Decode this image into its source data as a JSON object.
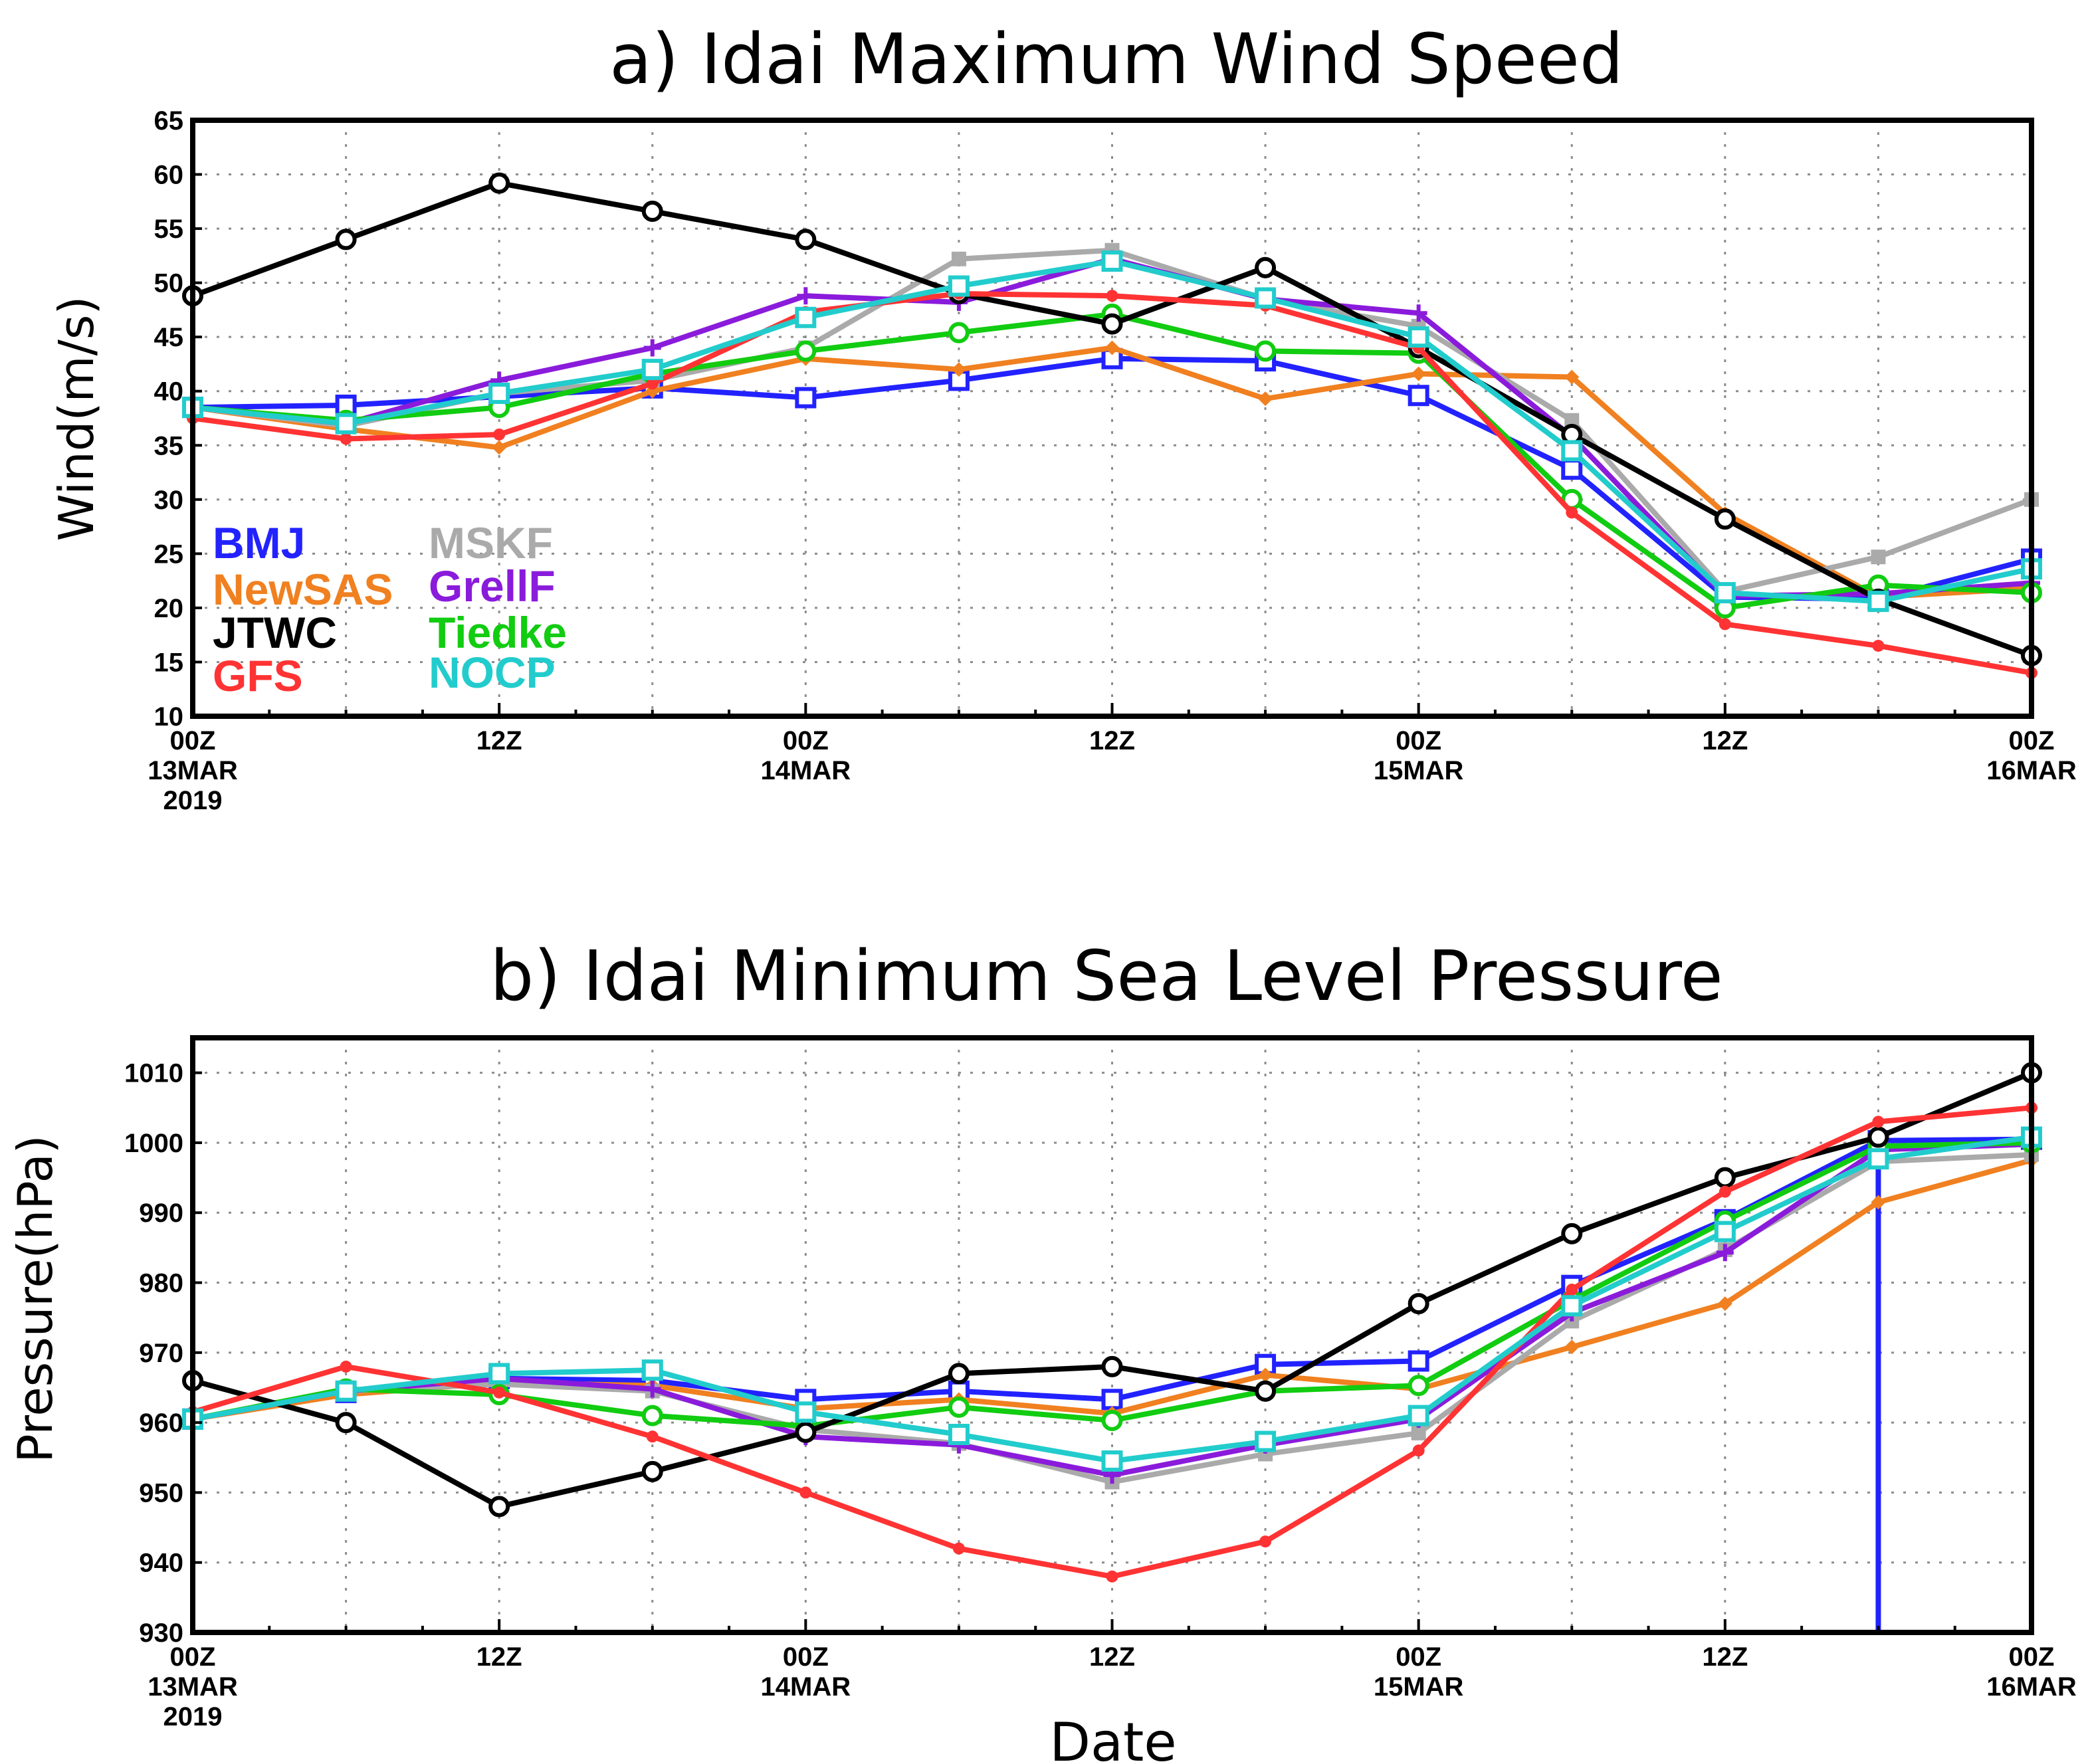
{
  "chart_data": [
    {
      "type": "line",
      "title": "a) Idai Maximum Wind Speed",
      "ylabel": "Wind(m/s)",
      "xlabel": "",
      "ylim": [
        10,
        65
      ],
      "yticks": [
        10,
        15,
        20,
        25,
        30,
        35,
        40,
        45,
        50,
        55,
        60,
        65
      ],
      "grid": true,
      "legend_position": "bottom-left",
      "x_ticks": [
        {
          "hour": 0,
          "lines": [
            "00Z",
            "13MAR",
            "2019"
          ]
        },
        {
          "hour": 12,
          "lines": [
            "12Z"
          ]
        },
        {
          "hour": 24,
          "lines": [
            "00Z",
            "14MAR"
          ]
        },
        {
          "hour": 36,
          "lines": [
            "12Z"
          ]
        },
        {
          "hour": 48,
          "lines": [
            "00Z",
            "15MAR"
          ]
        },
        {
          "hour": 60,
          "lines": [
            "12Z"
          ]
        },
        {
          "hour": 72,
          "lines": [
            "00Z",
            "16MAR"
          ]
        }
      ],
      "series": [
        {
          "name": "BMJ",
          "color": "#2222ff",
          "marker": "square",
          "x": [
            0,
            6,
            12,
            18,
            24,
            30,
            36,
            42,
            48,
            54,
            60,
            66,
            72
          ],
          "values": [
            38.5,
            38.7,
            39.5,
            40.3,
            39.4,
            41,
            43,
            42.8,
            39.6,
            32.8,
            21,
            20.8,
            24.5
          ]
        },
        {
          "name": "MSKF",
          "color": "#aaaaaa",
          "marker": "square-filled",
          "x": [
            0,
            6,
            12,
            18,
            24,
            30,
            36,
            42,
            48,
            54,
            60,
            66,
            72
          ],
          "values": [
            38.5,
            36.8,
            39.8,
            41,
            44,
            52.2,
            53,
            48.5,
            46,
            37.3,
            21.5,
            24.7,
            30
          ]
        },
        {
          "name": "NewSAS",
          "color": "#f08020",
          "marker": "diamond",
          "x": [
            0,
            6,
            12,
            18,
            24,
            30,
            36,
            42,
            48,
            54,
            60,
            66,
            72
          ],
          "values": [
            38.5,
            36.5,
            34.8,
            40,
            43,
            42,
            44,
            39.3,
            41.6,
            41.3,
            28.7,
            21,
            21.8
          ]
        },
        {
          "name": "GrellF",
          "color": "#8a1bdb",
          "marker": "plus",
          "x": [
            0,
            6,
            12,
            18,
            24,
            30,
            36,
            42,
            48,
            54,
            60,
            66,
            72
          ],
          "values": [
            38.5,
            37,
            41,
            44,
            48.8,
            48.2,
            52.2,
            48.5,
            47.2,
            35.8,
            21.1,
            21.3,
            22.3
          ]
        },
        {
          "name": "JTWC",
          "color": "#000000",
          "marker": "circle",
          "x": [
            0,
            6,
            12,
            18,
            24,
            30,
            36,
            42,
            48,
            54,
            60,
            66,
            72
          ],
          "values": [
            48.8,
            54,
            59.2,
            56.6,
            54,
            49,
            46.2,
            51.4,
            44,
            36,
            28.2,
            20.8,
            15.6
          ]
        },
        {
          "name": "Tiedke",
          "color": "#11cc11",
          "marker": "circle",
          "x": [
            0,
            6,
            12,
            18,
            24,
            30,
            36,
            42,
            48,
            54,
            60,
            66,
            72
          ],
          "values": [
            38.5,
            37.3,
            38.5,
            41.6,
            43.7,
            45.4,
            47.1,
            43.7,
            43.5,
            30,
            20,
            22.1,
            21.4
          ]
        },
        {
          "name": "GFS",
          "color": "#ff3333",
          "marker": "dot",
          "x": [
            0,
            6,
            12,
            18,
            24,
            30,
            36,
            42,
            48,
            54,
            60,
            66,
            72
          ],
          "values": [
            37.5,
            35.6,
            36,
            40.7,
            47.3,
            49,
            48.8,
            47.9,
            44,
            28.8,
            18.5,
            16.5,
            14
          ]
        },
        {
          "name": "NOCP",
          "color": "#22cccc",
          "marker": "square",
          "x": [
            0,
            6,
            12,
            18,
            24,
            30,
            36,
            42,
            48,
            54,
            60,
            66,
            72
          ],
          "values": [
            38.5,
            37,
            39.8,
            42,
            46.8,
            49.7,
            52,
            48.6,
            45,
            34.5,
            21.4,
            20.6,
            23.6
          ]
        }
      ]
    },
    {
      "type": "line",
      "title": "b) Idai Minimum Sea Level Pressure",
      "ylabel": "Pressure(hPa)",
      "xlabel": "Date",
      "ylim": [
        930,
        1015
      ],
      "yticks": [
        930,
        940,
        950,
        960,
        970,
        980,
        990,
        1000,
        1010
      ],
      "grid": true,
      "x_ticks": [
        {
          "hour": 0,
          "lines": [
            "00Z",
            "13MAR",
            "2019"
          ]
        },
        {
          "hour": 12,
          "lines": [
            "12Z"
          ]
        },
        {
          "hour": 24,
          "lines": [
            "00Z",
            "14MAR"
          ]
        },
        {
          "hour": 36,
          "lines": [
            "12Z"
          ]
        },
        {
          "hour": 48,
          "lines": [
            "00Z",
            "15MAR"
          ]
        },
        {
          "hour": 60,
          "lines": [
            "12Z"
          ]
        },
        {
          "hour": 72,
          "lines": [
            "00Z",
            "16MAR"
          ]
        }
      ],
      "series": [
        {
          "name": "BMJ",
          "color": "#2222ff",
          "marker": "square",
          "x": [
            0,
            6,
            12,
            18,
            24,
            30,
            36,
            42,
            48,
            54,
            60,
            66,
            72
          ],
          "values": [
            960.5,
            964.3,
            966.3,
            966,
            963.3,
            964.5,
            963.3,
            968.3,
            968.8,
            979.6,
            989,
            1000.3,
            1000.5
          ]
        },
        {
          "name": "MSKF",
          "color": "#aaaaaa",
          "marker": "square-filled",
          "x": [
            0,
            6,
            12,
            18,
            24,
            30,
            36,
            42,
            48,
            54,
            60,
            66,
            72
          ],
          "values": [
            960.5,
            964.5,
            965.5,
            964.5,
            959,
            957,
            951.5,
            955.5,
            958.5,
            974.5,
            984.7,
            997.3,
            998.3
          ]
        },
        {
          "name": "NewSAS",
          "color": "#f08020",
          "marker": "diamond",
          "x": [
            0,
            6,
            12,
            18,
            24,
            30,
            36,
            42,
            48,
            54,
            60,
            66,
            72
          ],
          "values": [
            960.5,
            964,
            965.7,
            965.3,
            962,
            963.3,
            961.3,
            966.8,
            964.8,
            970.8,
            977,
            991.5,
            997.5
          ]
        },
        {
          "name": "GrellF",
          "color": "#8a1bdb",
          "marker": "plus",
          "x": [
            0,
            6,
            12,
            18,
            24,
            30,
            36,
            42,
            48,
            54,
            60,
            66,
            72
          ],
          "values": [
            960.5,
            964.5,
            966.3,
            964.8,
            958,
            956.8,
            952.5,
            956.8,
            960.5,
            975.7,
            984.3,
            999,
            999.8
          ]
        },
        {
          "name": "JTWC",
          "color": "#000000",
          "marker": "circle",
          "x": [
            0,
            6,
            12,
            18,
            24,
            30,
            36,
            42,
            48,
            54,
            60,
            66,
            72
          ],
          "values": [
            966,
            960,
            948,
            953,
            958.6,
            967,
            968,
            964.5,
            977,
            987,
            995,
            1000.8,
            1010
          ]
        },
        {
          "name": "Tiedke",
          "color": "#11cc11",
          "marker": "circle",
          "x": [
            0,
            6,
            12,
            18,
            24,
            30,
            36,
            42,
            48,
            54,
            60,
            66,
            72
          ],
          "values": [
            960.5,
            964.8,
            964,
            961,
            959.5,
            962.2,
            960.3,
            964.5,
            965.3,
            977.5,
            988.8,
            999.5,
            1000
          ]
        },
        {
          "name": "GFS",
          "color": "#ff3333",
          "marker": "dot",
          "x": [
            0,
            6,
            12,
            18,
            24,
            30,
            36,
            42,
            48,
            54,
            60,
            66,
            72
          ],
          "values": [
            961.5,
            968,
            964.3,
            958,
            950,
            942,
            938,
            943,
            956,
            979,
            993,
            1003,
            1005
          ]
        },
        {
          "name": "NOCP",
          "color": "#22cccc",
          "marker": "square",
          "x": [
            0,
            6,
            12,
            18,
            24,
            30,
            36,
            42,
            48,
            54,
            60,
            66,
            72
          ],
          "values": [
            960.5,
            964.5,
            967,
            967.5,
            961.5,
            958.3,
            954.5,
            957.3,
            961,
            976.7,
            987.3,
            997.7,
            1000.8
          ]
        }
      ],
      "annotations": [
        {
          "type": "vertical-line",
          "color": "#2222ff",
          "x": 66,
          "from": 930,
          "to": 1000.3
        }
      ]
    }
  ]
}
